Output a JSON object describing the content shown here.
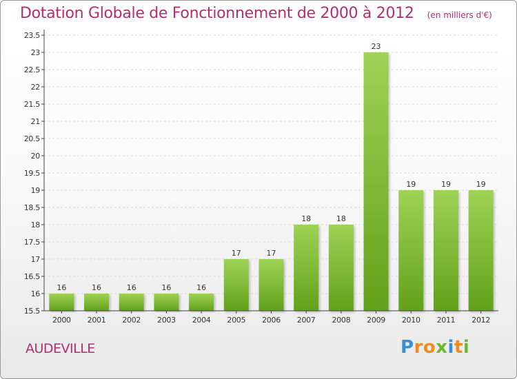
{
  "header": {
    "title": "Dotation Globale de Fonctionnement de 2000 à 2012",
    "subtitle": "(en milliers d'€)"
  },
  "footer": {
    "town": "AUDEVILLE",
    "logo_text": "Proxiti"
  },
  "colors": {
    "title": "#b32d6f",
    "bar_light": "#9ed256",
    "bar_dark": "#62a11a",
    "grid": "#d8d8d8",
    "axis": "#444444"
  },
  "chart_data": {
    "type": "bar",
    "title": "Dotation Globale de Fonctionnement de 2000 à 2012",
    "subtitle": "(en milliers d'€)",
    "categories": [
      "2000",
      "2001",
      "2002",
      "2003",
      "2004",
      "2005",
      "2006",
      "2007",
      "2008",
      "2009",
      "2010",
      "2011",
      "2012"
    ],
    "values": [
      16,
      16,
      16,
      16,
      16,
      17,
      17,
      18,
      18,
      23,
      19,
      19,
      19
    ],
    "value_labels": [
      "16",
      "16",
      "16",
      "16",
      "16",
      "17",
      "17",
      "18",
      "18",
      "23",
      "19",
      "19",
      "19"
    ],
    "ylim": [
      15.5,
      23.5
    ],
    "yticks": [
      "15.5",
      "16",
      "16.5",
      "17",
      "17.5",
      "18",
      "18.5",
      "19",
      "19.5",
      "20",
      "20.5",
      "21",
      "21.5",
      "22",
      "22.5",
      "23",
      "23.5"
    ],
    "xlabel": "",
    "ylabel": "",
    "grid": true,
    "legend": "none"
  }
}
